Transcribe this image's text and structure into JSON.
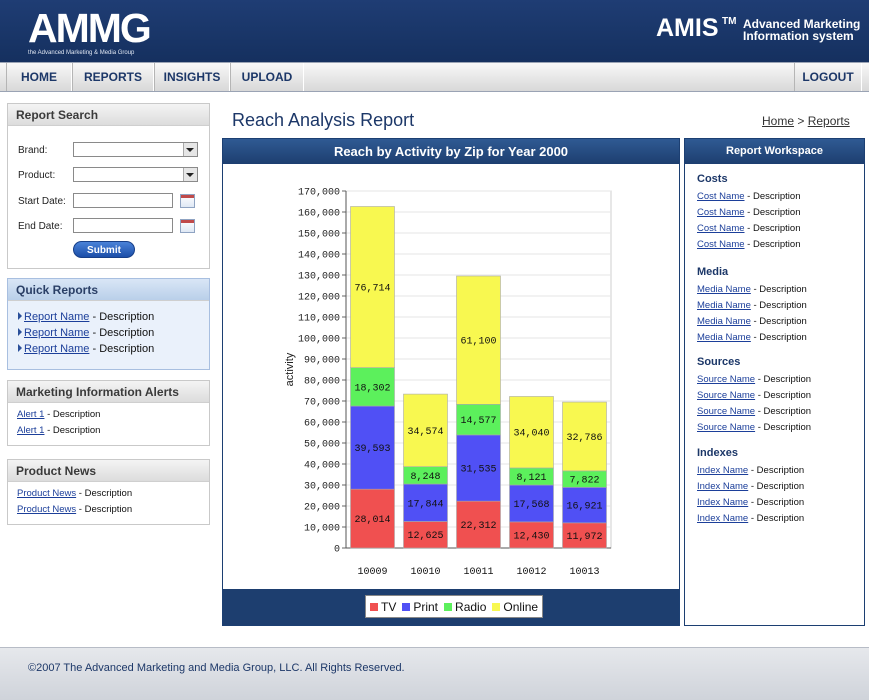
{
  "header": {
    "logo_text": "AMMG",
    "logo_sub": "the Advanced Marketing & Media Group",
    "amis": "AMIS",
    "tm": "TM",
    "amis_sub1": "Advanced Marketing",
    "amis_sub2": "Information system"
  },
  "nav": {
    "items": [
      {
        "label": "HOME"
      },
      {
        "label": "REPORTS"
      },
      {
        "label": "INSIGHTS"
      },
      {
        "label": "UPLOAD"
      }
    ],
    "logout": "LOGOUT"
  },
  "report_search": {
    "title": "Report Search",
    "brand_label": "Brand:",
    "product_label": "Product:",
    "start_label": "Start Date:",
    "end_label": "End Date:",
    "brand_value": "",
    "product_value": "",
    "start_value": "",
    "end_value": "",
    "submit": "Submit"
  },
  "quick_reports": {
    "title": "Quick Reports",
    "items": [
      {
        "link": "Report Name",
        "desc": " - Description"
      },
      {
        "link": "Report Name",
        "desc": " - Description"
      },
      {
        "link": "Report Name",
        "desc": " - Description"
      }
    ]
  },
  "alerts": {
    "title": "Marketing Information Alerts",
    "items": [
      {
        "link": "Alert 1",
        "desc": " - Description"
      },
      {
        "link": "Alert 1",
        "desc": " - Description"
      }
    ]
  },
  "news": {
    "title": "Product News",
    "items": [
      {
        "link": "Product News",
        "desc": " - Description"
      },
      {
        "link": "Product News",
        "desc": " - Description"
      }
    ]
  },
  "main": {
    "page_title": "Reach Analysis Report",
    "breadcrumb": {
      "home": "Home",
      "sep": " > ",
      "reports": "Reports"
    }
  },
  "chart_data": {
    "type": "bar",
    "stacked": true,
    "title": "Reach by Activity by Zip for Year 2000",
    "ylabel": "activity",
    "xlabel": "",
    "ylim": [
      0,
      170000
    ],
    "yticks": [
      "0",
      "10,000",
      "20,000",
      "30,000",
      "40,000",
      "50,000",
      "60,000",
      "70,000",
      "80,000",
      "90,000",
      "100,000",
      "110,000",
      "120,000",
      "130,000",
      "140,000",
      "150,000",
      "160,000",
      "170,000"
    ],
    "categories": [
      "10009",
      "10010",
      "10011",
      "10012",
      "10013"
    ],
    "series": [
      {
        "name": "TV",
        "color": "#f05050",
        "values": [
          28014,
          12625,
          22312,
          12430,
          11972
        ],
        "labels": [
          "28,014",
          "12,625",
          "22,312",
          "12,430",
          "11,972"
        ]
      },
      {
        "name": "Print",
        "color": "#5050f5",
        "values": [
          39593,
          17844,
          31535,
          17568,
          16921
        ],
        "labels": [
          "39,593",
          "17,844",
          "31,535",
          "17,568",
          "16,921"
        ]
      },
      {
        "name": "Radio",
        "color": "#5cf05c",
        "values": [
          18302,
          8248,
          14577,
          8121,
          7822
        ],
        "labels": [
          "18,302",
          "8,248",
          "14,577",
          "8,121",
          "7,822"
        ]
      },
      {
        "name": "Online",
        "color": "#f8f850",
        "values": [
          76714,
          34574,
          61100,
          34040,
          32786
        ],
        "labels": [
          "76,714",
          "34,574",
          "61,100",
          "34,040",
          "32,786"
        ]
      }
    ],
    "grid": true,
    "legend_position": "bottom"
  },
  "workspace": {
    "title": "Report Workspace",
    "sections": [
      {
        "title": "Costs",
        "items": [
          {
            "link": "Cost Name",
            "desc": " - Description"
          },
          {
            "link": "Cost Name",
            "desc": " - Description"
          },
          {
            "link": "Cost Name",
            "desc": " - Description"
          },
          {
            "link": "Cost Name",
            "desc": " - Description"
          }
        ]
      },
      {
        "title": "Media",
        "items": [
          {
            "link": "Media Name",
            "desc": " - Description"
          },
          {
            "link": "Media Name",
            "desc": " - Description"
          },
          {
            "link": "Media Name",
            "desc": " - Description"
          },
          {
            "link": "Media Name",
            "desc": " - Description"
          }
        ]
      },
      {
        "title": "Sources",
        "items": [
          {
            "link": "Source Name",
            "desc": " - Description"
          },
          {
            "link": "Source Name",
            "desc": " - Description"
          },
          {
            "link": "Source Name",
            "desc": " - Description"
          },
          {
            "link": "Source Name",
            "desc": " - Description"
          }
        ]
      },
      {
        "title": "Indexes",
        "items": [
          {
            "link": "Index Name",
            "desc": " - Description"
          },
          {
            "link": "Index Name",
            "desc": " - Description"
          },
          {
            "link": "Index Name",
            "desc": " - Description"
          },
          {
            "link": "Index Name",
            "desc": " - Description"
          }
        ]
      }
    ]
  },
  "footer": {
    "text": "©2007 The Advanced Marketing and Media Group, LLC. All Rights Reserved."
  },
  "icons": {
    "calendar": "calendar-icon",
    "select_arrow": "chevron-down-icon",
    "bullet": "triangle-right-icon"
  }
}
